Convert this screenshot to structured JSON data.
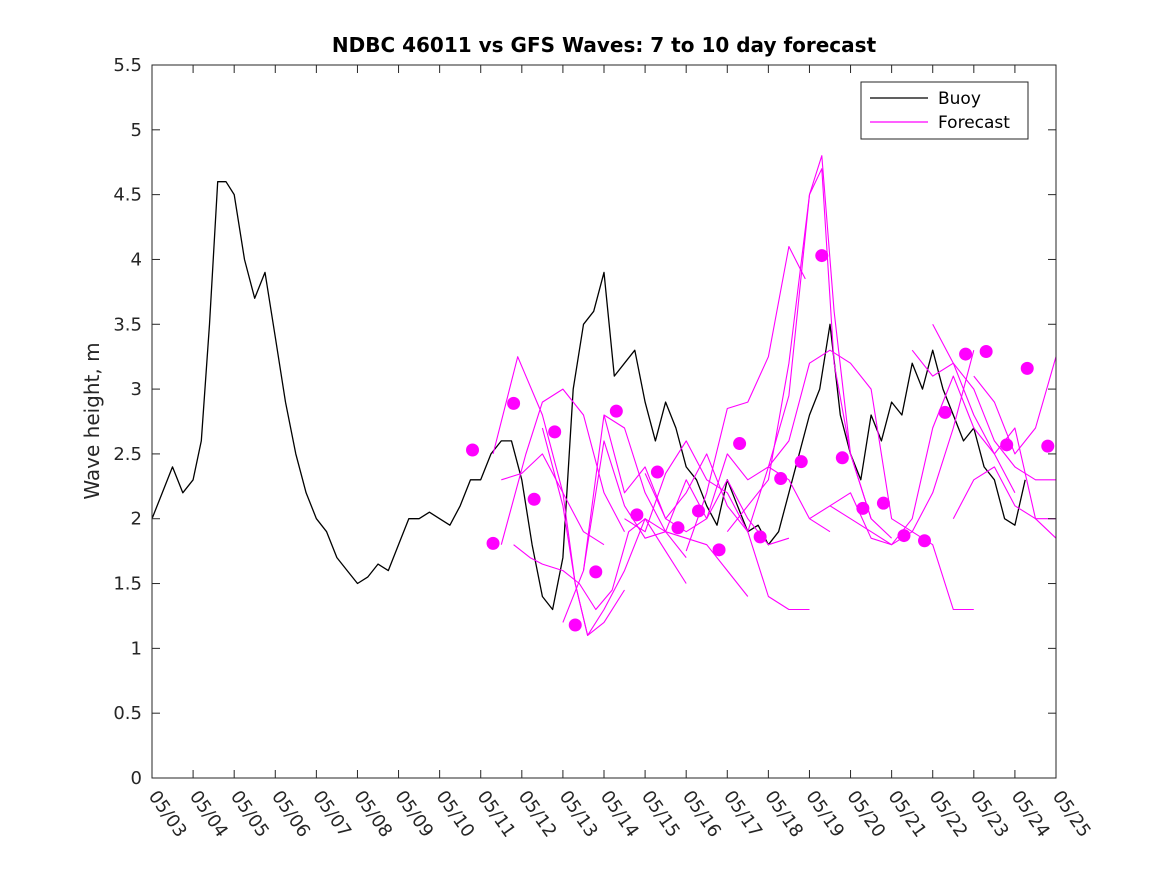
{
  "chart_data": {
    "type": "line",
    "title": "NDBC 46011 vs GFS Waves: 7 to 10 day forecast",
    "xlabel": "",
    "ylabel": "Wave height, m",
    "xlim": [
      0,
      22
    ],
    "ylim": [
      0,
      5.5
    ],
    "x_unit": "days since 05/03",
    "x_ticks": [
      0,
      1,
      2,
      3,
      4,
      5,
      6,
      7,
      8,
      9,
      10,
      11,
      12,
      13,
      14,
      15,
      16,
      17,
      18,
      19,
      20,
      21,
      22
    ],
    "x_tick_labels": [
      "05/03",
      "05/04",
      "05/05",
      "05/06",
      "05/07",
      "05/08",
      "05/09",
      "05/10",
      "05/11",
      "05/12",
      "05/13",
      "05/14",
      "05/15",
      "05/16",
      "05/17",
      "05/18",
      "05/19",
      "05/20",
      "05/21",
      "05/22",
      "05/23",
      "05/24",
      "05/25"
    ],
    "y_ticks": [
      0,
      0.5,
      1,
      1.5,
      2,
      2.5,
      3,
      3.5,
      4,
      4.5,
      5,
      5.5
    ],
    "y_tick_labels": [
      "0",
      "0.5",
      "1",
      "1.5",
      "2",
      "2.5",
      "3",
      "3.5",
      "4",
      "4.5",
      "5",
      "5.5"
    ],
    "grid": false,
    "legend": {
      "position": "top-right",
      "entries": [
        {
          "name": "Buoy",
          "color": "#000000"
        },
        {
          "name": "Forecast",
          "color": "#ff00ff"
        }
      ]
    },
    "series": [
      {
        "name": "Buoy",
        "color": "#000000",
        "x": [
          0,
          0.25,
          0.5,
          0.75,
          1,
          1.2,
          1.4,
          1.6,
          1.8,
          2,
          2.25,
          2.5,
          2.75,
          3,
          3.25,
          3.5,
          3.75,
          4,
          4.25,
          4.5,
          4.75,
          5,
          5.25,
          5.5,
          5.75,
          6,
          6.25,
          6.5,
          6.75,
          7,
          7.25,
          7.5,
          7.75,
          8,
          8.25,
          8.5,
          8.75,
          9,
          9.25,
          9.5,
          9.75,
          10,
          10.25,
          10.5,
          10.75,
          11,
          11.25,
          11.5,
          11.75,
          12,
          12.25,
          12.5,
          12.75,
          13,
          13.25,
          13.5,
          13.75,
          14,
          14.25,
          14.5,
          14.75,
          15,
          15.25,
          15.5,
          15.75,
          16,
          16.25,
          16.5,
          16.75,
          17,
          17.25,
          17.5,
          17.75,
          18,
          18.25,
          18.5,
          18.75,
          19,
          19.25,
          19.5,
          19.75,
          20,
          20.25,
          20.5,
          20.75,
          21,
          21.25
        ],
        "values": [
          2.0,
          2.2,
          2.4,
          2.2,
          2.3,
          2.6,
          3.5,
          4.6,
          4.6,
          4.5,
          4.0,
          3.7,
          3.9,
          3.4,
          2.9,
          2.5,
          2.2,
          2.0,
          1.9,
          1.7,
          1.6,
          1.5,
          1.55,
          1.65,
          1.6,
          1.8,
          2.0,
          2.0,
          2.05,
          2.0,
          1.95,
          2.1,
          2.3,
          2.3,
          2.5,
          2.6,
          2.6,
          2.3,
          1.8,
          1.4,
          1.3,
          1.7,
          3.0,
          3.5,
          3.6,
          3.9,
          3.1,
          3.2,
          3.3,
          2.9,
          2.6,
          2.9,
          2.7,
          2.4,
          2.3,
          2.1,
          1.95,
          2.3,
          2.1,
          1.9,
          1.95,
          1.8,
          1.9,
          2.2,
          2.5,
          2.8,
          3.0,
          3.5,
          2.8,
          2.5,
          2.3,
          2.8,
          2.6,
          2.9,
          2.8,
          3.2,
          3.0,
          3.3,
          3.0,
          2.8,
          2.6,
          2.7,
          2.4,
          2.3,
          2.0,
          1.95,
          2.3
        ]
      },
      {
        "name": "",
        "color": "#ff00ff",
        "x": [
          8.5,
          9.0,
          9.5,
          10.0,
          10.5,
          11.0
        ],
        "values": [
          2.3,
          2.35,
          2.5,
          2.2,
          1.9,
          1.8
        ]
      },
      {
        "name": "",
        "color": "#ff00ff",
        "x": [
          8.5,
          9.1,
          9.5,
          10.0,
          10.5,
          11.0,
          11.5
        ],
        "values": [
          1.8,
          2.5,
          2.9,
          3.0,
          2.8,
          2.2,
          1.9
        ]
      },
      {
        "name": "",
        "color": "#ff00ff",
        "x": [
          8.3,
          8.9,
          9.5,
          10.0,
          10.3,
          10.6,
          11.0,
          11.5
        ],
        "values": [
          2.5,
          3.25,
          2.8,
          2.2,
          1.5,
          1.1,
          1.2,
          1.45
        ]
      },
      {
        "name": "",
        "color": "#ff00ff",
        "x": [
          8.8,
          9.2,
          9.5,
          10.0,
          10.4,
          10.8,
          11.2,
          11.6,
          12.0,
          12.5,
          13.0
        ],
        "values": [
          1.8,
          1.7,
          1.65,
          1.6,
          1.5,
          1.3,
          1.45,
          1.9,
          2.0,
          1.9,
          1.7
        ]
      },
      {
        "name": "",
        "color": "#ff00ff",
        "x": [
          9.5,
          10.0,
          10.3,
          10.6,
          11.0,
          11.5,
          12.0,
          12.5,
          13.0
        ],
        "values": [
          2.7,
          2.1,
          1.5,
          1.1,
          1.3,
          1.6,
          2.0,
          1.75,
          1.5
        ]
      },
      {
        "name": "",
        "color": "#ff00ff",
        "x": [
          10.0,
          10.5,
          11.0,
          11.5,
          12.0,
          12.5,
          13.0,
          13.5
        ],
        "values": [
          1.2,
          1.6,
          2.6,
          2.1,
          1.85,
          1.9,
          2.3,
          2.0
        ]
      },
      {
        "name": "",
        "color": "#ff00ff",
        "x": [
          10.5,
          11.0,
          11.5,
          12.0,
          12.5,
          13.0,
          13.5,
          14.0,
          14.5
        ],
        "values": [
          1.6,
          2.8,
          2.7,
          2.2,
          1.9,
          1.85,
          1.8,
          1.6,
          1.4
        ]
      },
      {
        "name": "",
        "color": "#ff00ff",
        "x": [
          11.5,
          12.0,
          12.5,
          13.0,
          13.5,
          14.0,
          14.5,
          15.0,
          15.5,
          16.0
        ],
        "values": [
          2.0,
          1.9,
          2.35,
          2.6,
          2.3,
          2.2,
          1.9,
          1.4,
          1.3,
          1.3
        ]
      },
      {
        "name": "",
        "color": "#ff00ff",
        "x": [
          11.0,
          11.5,
          12.0,
          12.5,
          13.0,
          13.5,
          14.0,
          14.5,
          15.0,
          15.5
        ],
        "values": [
          2.8,
          2.2,
          2.4,
          2.0,
          1.9,
          2.0,
          2.3,
          2.0,
          1.8,
          1.85
        ]
      },
      {
        "name": "",
        "color": "#ff00ff",
        "x": [
          12.0,
          12.5,
          13.0,
          13.5,
          14.0,
          14.5,
          15.0,
          15.5,
          16.0,
          16.5
        ],
        "values": [
          2.35,
          2.0,
          2.2,
          2.5,
          2.1,
          1.9,
          2.4,
          2.3,
          2.0,
          1.9
        ]
      },
      {
        "name": "",
        "color": "#ff00ff",
        "x": [
          13.0,
          13.5,
          14.0,
          14.5,
          15.0,
          15.5,
          15.9
        ],
        "values": [
          1.75,
          2.2,
          2.85,
          2.9,
          3.25,
          4.1,
          3.85
        ]
      },
      {
        "name": "",
        "color": "#ff00ff",
        "x": [
          13.5,
          14.0,
          14.5,
          15.0,
          15.5,
          16.0,
          16.3,
          16.6,
          17.0,
          17.5
        ],
        "values": [
          2.0,
          2.5,
          2.3,
          2.4,
          2.95,
          4.5,
          4.8,
          3.6,
          2.5,
          2.0
        ]
      },
      {
        "name": "",
        "color": "#ff00ff",
        "x": [
          14.0,
          14.5,
          15.0,
          15.5,
          16.0,
          16.3,
          16.6,
          17.0,
          17.5,
          18.0
        ],
        "values": [
          1.9,
          2.1,
          2.3,
          3.2,
          4.5,
          4.7,
          3.2,
          2.5,
          2.0,
          1.85
        ]
      },
      {
        "name": "",
        "color": "#ff00ff",
        "x": [
          15.0,
          15.5,
          16.0,
          16.5,
          17.0,
          17.5,
          18.0,
          18.5,
          19.0,
          19.5,
          20.0
        ],
        "values": [
          2.4,
          2.6,
          3.2,
          3.3,
          3.2,
          3.0,
          2.0,
          1.9,
          1.8,
          1.3,
          1.3
        ]
      },
      {
        "name": "",
        "color": "#ff00ff",
        "x": [
          16.0,
          16.5,
          17.0,
          17.5,
          18.0,
          18.5,
          19.0,
          19.5,
          20.0
        ],
        "values": [
          2.0,
          2.1,
          2.0,
          1.9,
          1.8,
          1.9,
          2.2,
          2.7,
          3.3
        ]
      },
      {
        "name": "",
        "color": "#ff00ff",
        "x": [
          16.5,
          17.0,
          17.5,
          18.0,
          18.5,
          19.0,
          19.5,
          20.0,
          20.5,
          21.0
        ],
        "values": [
          2.1,
          2.2,
          1.85,
          1.8,
          2.0,
          2.7,
          3.1,
          2.7,
          2.5,
          2.2
        ]
      },
      {
        "name": "",
        "color": "#ff00ff",
        "x": [
          18.5,
          19.0,
          19.5,
          20.0,
          20.5,
          21.0,
          21.5,
          22.0
        ],
        "values": [
          3.3,
          3.1,
          3.2,
          3.0,
          2.6,
          2.4,
          2.3,
          2.3
        ]
      },
      {
        "name": "",
        "color": "#ff00ff",
        "x": [
          19.0,
          19.5,
          20.0,
          20.5,
          21.0,
          21.5,
          22.0
        ],
        "values": [
          3.5,
          3.2,
          2.8,
          2.5,
          2.7,
          2.0,
          2.0
        ]
      },
      {
        "name": "",
        "color": "#ff00ff",
        "x": [
          20.0,
          20.5,
          21.0,
          21.5,
          22.0
        ],
        "values": [
          3.1,
          2.9,
          2.5,
          2.7,
          3.25
        ]
      },
      {
        "name": "",
        "color": "#ff00ff",
        "x": [
          19.5,
          20.0,
          20.5,
          21.0,
          21.5,
          22.0
        ],
        "values": [
          2.0,
          2.3,
          2.4,
          2.1,
          2.0,
          1.85
        ]
      }
    ],
    "markers": {
      "color": "#ff00ff",
      "x": [
        7.8,
        8.3,
        8.8,
        9.3,
        9.8,
        10.3,
        10.8,
        11.3,
        11.8,
        12.3,
        12.8,
        13.3,
        13.8,
        14.3,
        14.8,
        15.3,
        15.8,
        16.3,
        16.8,
        17.3,
        17.8,
        18.3,
        18.8,
        19.3,
        19.8,
        20.3,
        20.8,
        21.3,
        21.8
      ],
      "values": [
        2.53,
        1.81,
        2.89,
        2.15,
        2.67,
        1.18,
        1.59,
        2.83,
        2.03,
        2.36,
        1.93,
        2.06,
        1.76,
        2.58,
        1.86,
        2.31,
        2.44,
        4.03,
        2.47,
        2.08,
        2.12,
        1.87,
        1.83,
        2.82,
        3.27,
        3.29,
        2.57,
        3.16,
        2.56
      ]
    }
  }
}
